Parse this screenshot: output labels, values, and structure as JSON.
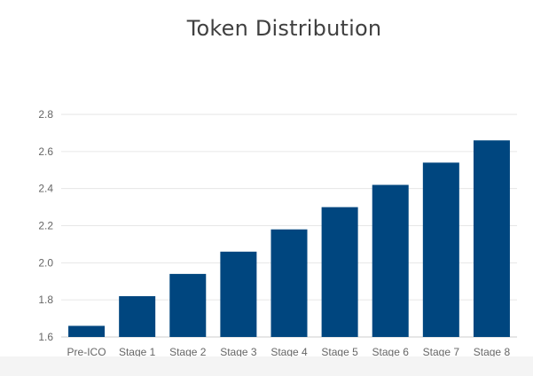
{
  "chart_data": {
    "type": "bar",
    "title": "Token Distribution",
    "xlabel": "",
    "ylabel": "",
    "categories": [
      "Pre-ICO",
      "Stage 1",
      "Stage 2",
      "Stage 3",
      "Stage 4",
      "Stage 5",
      "Stage 6",
      "Stage 7",
      "Stage 8"
    ],
    "values": [
      1.66,
      1.82,
      1.94,
      2.06,
      2.18,
      2.3,
      2.42,
      2.54,
      2.66
    ],
    "ylim": [
      1.6,
      2.8
    ],
    "yticks": [
      "1.6",
      "1.8",
      "2.0",
      "2.2",
      "2.4",
      "2.6",
      "2.8"
    ],
    "grid": true,
    "legend": "none",
    "bar_color": "#00467f",
    "grid_color": "#e6e6e6",
    "axis_color": "#cccccc"
  }
}
